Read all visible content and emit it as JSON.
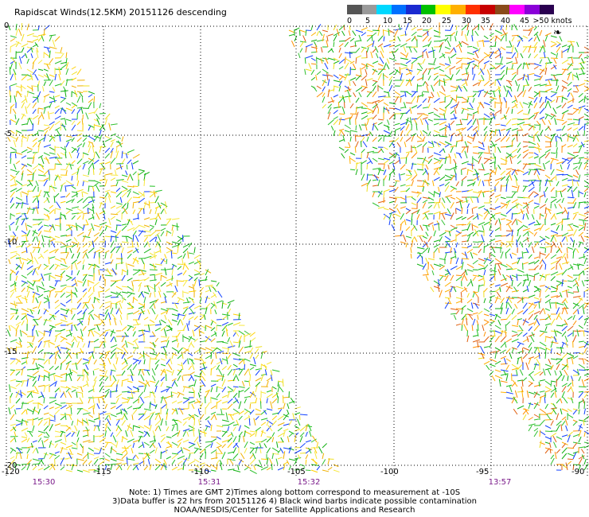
{
  "title": "Rapidscat Winds(12.5KM) 20151126 descending",
  "scale": {
    "labels": [
      "0",
      "5",
      "10",
      "15",
      "20",
      "25",
      "30",
      "35",
      "40",
      "45",
      ">50 knots"
    ],
    "colors": [
      "#555555",
      "#9a9a9a",
      "#00d8ff",
      "#0070ff",
      "#1a2ad0",
      "#00c000",
      "#ffff00",
      "#ffb000",
      "#ff3000",
      "#c80000",
      "#8a4a1a",
      "#ff00ff",
      "#8a00d8",
      "#2a0050"
    ]
  },
  "axes": {
    "lon_labels": [
      "-120",
      "-115",
      "-110",
      "-105",
      "-100",
      "-95",
      "-90"
    ],
    "lat_labels": [
      "0",
      "-5",
      "-10",
      "-15",
      "-20"
    ]
  },
  "times": [
    "15:30",
    "15:31",
    "15:32",
    "13:57"
  ],
  "notes": [
    "Note: 1) Times are GMT 2)Times along bottom correspond to measurement at -10S",
    "3)Data buffer is 22 hrs from 20151126 4) Black wind barbs indicate possible contamination",
    "NOAA/NESDIS/Center for Satellite Applications and Research"
  ],
  "swaths": [
    {
      "name": "west-swath"
    },
    {
      "name": "east-swath"
    }
  ]
}
